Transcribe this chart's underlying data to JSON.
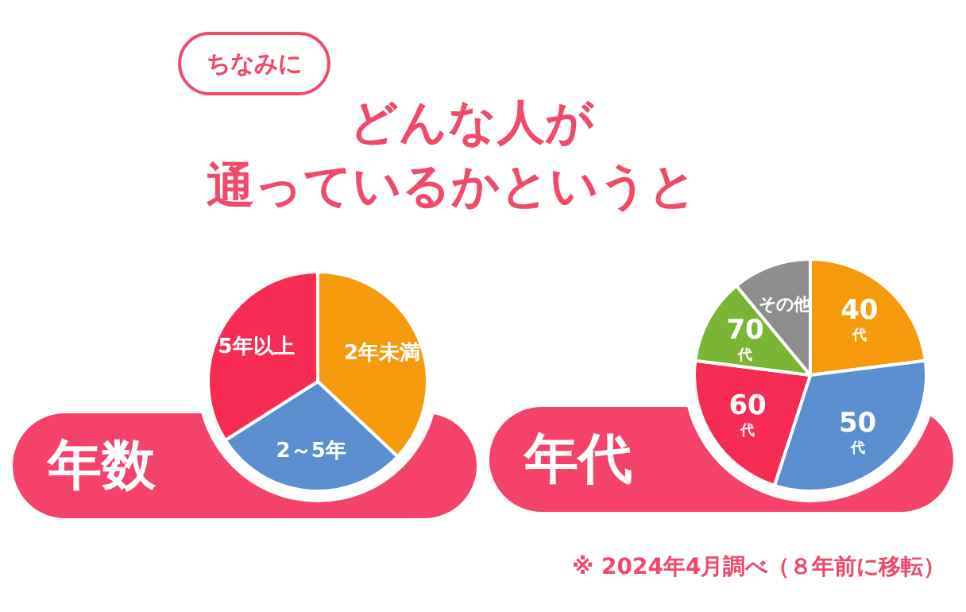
{
  "chart_data": [
    {
      "type": "other",
      "title": "どんな人が",
      "subtitle": "通っているかというと",
      "annotations": [
        "ちなみに"
      ]
    },
    {
      "type": "pie",
      "title": "年数",
      "categories": [
        "2年未満",
        "2～5年",
        "5年以上"
      ],
      "values": [
        37,
        29,
        34
      ],
      "colors": [
        "#f59a0c",
        "#5b8fd0",
        "#f72c55"
      ]
    },
    {
      "type": "pie",
      "title": "年代",
      "categories": [
        "40代",
        "50代",
        "60代",
        "70代",
        "その他"
      ],
      "values": [
        23,
        32,
        22,
        12,
        11
      ],
      "colors": [
        "#f59a0c",
        "#5b8fd0",
        "#f72c55",
        "#7ab536",
        "#8e8e8e"
      ],
      "annotations": [
        "※ 2024年4月調べ（８年前に移転）"
      ]
    }
  ]
}
